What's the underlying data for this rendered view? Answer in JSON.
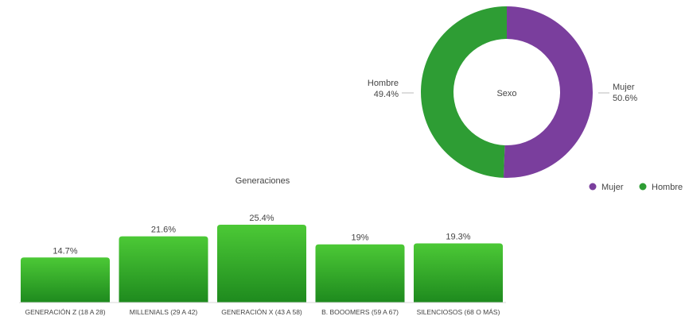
{
  "colors": {
    "mujer": "#7a3e9d",
    "hombre": "#2e9d34",
    "bar_top": "#4cc936",
    "bar_bottom": "#1e8a1e",
    "leader": "#bbbbbb",
    "text": "#444444"
  },
  "chart_data": [
    {
      "type": "pie",
      "variant": "donut",
      "title": "Sexo",
      "slices": [
        {
          "name": "Mujer",
          "value": 50.6,
          "label": "50.6%",
          "color": "#7a3e9d"
        },
        {
          "name": "Hombre",
          "value": 49.4,
          "label": "49.4%",
          "color": "#2e9d34"
        }
      ],
      "legend": {
        "placement": "bottom-right",
        "entries": [
          "Mujer",
          "Hombre"
        ]
      }
    },
    {
      "type": "bar",
      "title": "Generaciones",
      "categories": [
        "GENERACIÓN Z (18 A 28)",
        "MILLENIALS (29 A 42)",
        "GENERACIÓN X (43 A 58)",
        "B. BOOOMERS (59 A 67)",
        "SILENCIOSOS (68 O MÁS)"
      ],
      "values": [
        14.7,
        21.6,
        25.4,
        19,
        19.3
      ],
      "value_labels": [
        "14.7%",
        "21.6%",
        "25.4%",
        "19%",
        "19.3%"
      ],
      "ylim": [
        0,
        25.4
      ],
      "grid": false,
      "xlabel": "",
      "ylabel": ""
    }
  ]
}
